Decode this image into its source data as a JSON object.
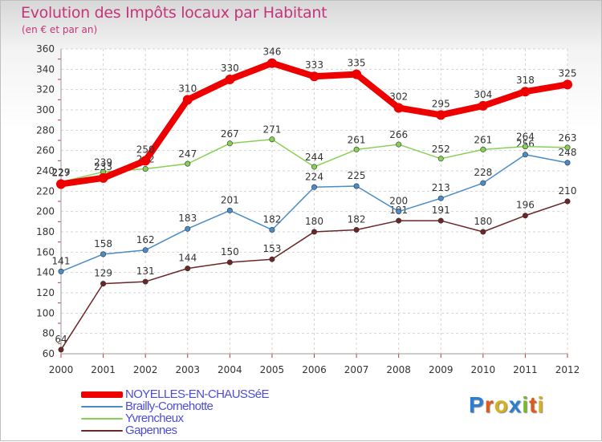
{
  "header": {
    "title": "Evolution des Impôts locaux par Habitant",
    "subtitle": "(en € et par an)"
  },
  "logo": {
    "text": "Proxiti",
    "colors": [
      "#2a7fd4",
      "#e05a1c",
      "#d6b21a",
      "#2a7fd4",
      "#79b72b",
      "#e05a1c",
      "#d6b21a"
    ]
  },
  "chart_data": {
    "type": "line",
    "x": [
      "2000",
      "2001",
      "2002",
      "2003",
      "2004",
      "2005",
      "2006",
      "2007",
      "2008",
      "2009",
      "2010",
      "2011",
      "2012"
    ],
    "ylim": [
      60,
      360
    ],
    "yticks": [
      60,
      80,
      100,
      120,
      140,
      160,
      180,
      200,
      220,
      240,
      260,
      280,
      300,
      320,
      340,
      360
    ],
    "grid": true,
    "legend": "bottom-left",
    "series": [
      {
        "name": "NOYELLES-EN-CHAUSSéE",
        "color": "#ee0000",
        "emphasis": true,
        "values": [
          227,
          233,
          250,
          310,
          330,
          346,
          333,
          335,
          302,
          295,
          304,
          318,
          325
        ]
      },
      {
        "name": "Brailly-Cornehotte",
        "color": "#4a8cc8",
        "values": [
          141,
          158,
          162,
          183,
          201,
          182,
          224,
          225,
          200,
          213,
          228,
          256,
          248
        ]
      },
      {
        "name": "Yvrencheux",
        "color": "#88d055",
        "values": [
          229,
          239,
          242,
          247,
          267,
          271,
          244,
          261,
          266,
          252,
          261,
          264,
          263
        ]
      },
      {
        "name": "Gapennes",
        "color": "#6b2626",
        "values": [
          64,
          129,
          131,
          144,
          150,
          153,
          180,
          182,
          191,
          191,
          180,
          196,
          210
        ]
      }
    ]
  }
}
